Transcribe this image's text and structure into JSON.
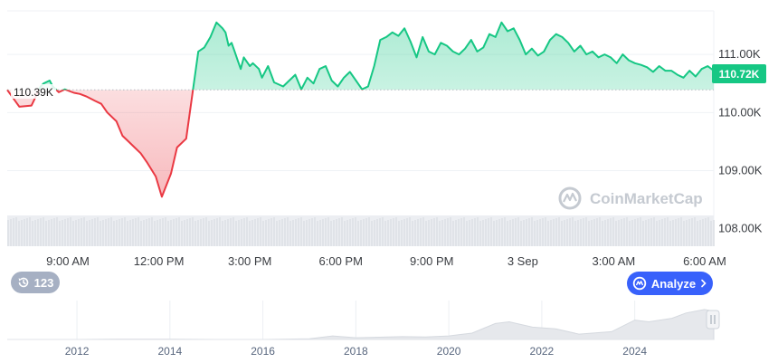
{
  "chart_data": {
    "type": "area",
    "reference_value": 110.39,
    "reference_label": "110.39K",
    "current_label": "110.72K",
    "y_unit": "K",
    "ylim": [
      107.7,
      111.75
    ],
    "y_ticks": [
      "111.00K",
      "110.00K",
      "109.00K",
      "108.00K"
    ],
    "y_tick_values": [
      111.0,
      110.0,
      109.0,
      108.0
    ],
    "x_ticks": [
      "9:00 AM",
      "12:00 PM",
      "3:00 PM",
      "6:00 PM",
      "9:00 PM",
      "3 Sep",
      "3:00 AM",
      "6:00 AM"
    ],
    "x_tick_hours": [
      9,
      12,
      15,
      18,
      21,
      24,
      27,
      30
    ],
    "xlim_hours": [
      7.0,
      30.3
    ],
    "colors": {
      "up": "#16c784",
      "down": "#ea3943",
      "volume": "#e3e6eb",
      "grid": "#eff2f5"
    },
    "series": [
      {
        "x": [
          7.0,
          7.4,
          7.8,
          8.1,
          8.2,
          8.4,
          8.5,
          8.7,
          8.9,
          9.0,
          9.2,
          9.4,
          9.6,
          9.9,
          10.1,
          10.3,
          10.6,
          10.8,
          11.0,
          11.2,
          11.4,
          11.6,
          11.9,
          12.1,
          12.4,
          12.6,
          12.9,
          13.1,
          13.3,
          13.5,
          13.7,
          13.9,
          14.1,
          14.2,
          14.3,
          14.4,
          14.5,
          14.6,
          14.7,
          14.8,
          15.0,
          15.1,
          15.3,
          15.4,
          15.6,
          15.8,
          16.1,
          16.3,
          16.5,
          16.7,
          16.9,
          17.1,
          17.3,
          17.5,
          17.7,
          17.9,
          18.1,
          18.3,
          18.5,
          18.7,
          18.9,
          19.1,
          19.3,
          19.5,
          19.7,
          19.9,
          20.1,
          20.3,
          20.5,
          20.7,
          20.9,
          21.1,
          21.3,
          21.5,
          21.7,
          21.9,
          22.1,
          22.3,
          22.5,
          22.7,
          22.9,
          23.1,
          23.3,
          23.5,
          23.7,
          23.9,
          24.1,
          24.3,
          24.5,
          24.7,
          24.9,
          25.1,
          25.3,
          25.5,
          25.7,
          25.9,
          26.1,
          26.3,
          26.5,
          26.7,
          26.9,
          27.1,
          27.3,
          27.5,
          27.7,
          27.9,
          28.1,
          28.3,
          28.5,
          28.7,
          28.9,
          29.1,
          29.3,
          29.5,
          29.7,
          29.9,
          30.1,
          30.3
        ],
        "y": [
          110.39,
          110.1,
          110.12,
          110.45,
          110.5,
          110.55,
          110.45,
          110.35,
          110.4,
          110.38,
          110.34,
          110.32,
          110.28,
          110.2,
          110.15,
          110.0,
          109.85,
          109.6,
          109.5,
          109.4,
          109.3,
          109.15,
          108.9,
          108.55,
          108.95,
          109.4,
          109.55,
          110.3,
          111.05,
          111.12,
          111.3,
          111.55,
          111.45,
          111.38,
          111.15,
          111.2,
          111.05,
          110.9,
          110.75,
          110.95,
          110.8,
          110.85,
          110.75,
          110.6,
          110.8,
          110.52,
          110.45,
          110.55,
          110.65,
          110.4,
          110.6,
          110.5,
          110.75,
          110.8,
          110.55,
          110.45,
          110.6,
          110.7,
          110.55,
          110.4,
          110.45,
          110.8,
          111.25,
          111.3,
          111.38,
          111.32,
          111.45,
          111.22,
          110.95,
          111.3,
          111.05,
          111.0,
          111.2,
          111.15,
          111.05,
          111.0,
          111.1,
          111.25,
          111.05,
          111.12,
          111.35,
          111.3,
          111.55,
          111.4,
          111.45,
          111.25,
          111.0,
          111.1,
          110.98,
          111.05,
          111.25,
          111.35,
          111.3,
          111.2,
          111.05,
          111.15,
          111.0,
          111.05,
          110.95,
          111.0,
          110.95,
          110.85,
          111.0,
          110.9,
          110.85,
          110.82,
          110.78,
          110.7,
          110.8,
          110.72,
          110.72,
          110.65,
          110.6,
          110.72,
          110.62,
          110.75,
          110.8,
          110.72
        ]
      }
    ],
    "navigator": {
      "x_ticks": [
        "2012",
        "2014",
        "2016",
        "2018",
        "2020",
        "2022",
        "2024"
      ],
      "x_tick_years": [
        2012,
        2014,
        2016,
        2018,
        2020,
        2022,
        2024
      ],
      "xlim_years": [
        2010.5,
        2025.7
      ],
      "x": [
        2010.5,
        2012,
        2013,
        2014,
        2015,
        2016,
        2017,
        2017.5,
        2018,
        2019,
        2019.5,
        2020,
        2020.5,
        2021,
        2021.3,
        2021.8,
        2022.3,
        2022.8,
        2023.5,
        2024,
        2024.3,
        2024.8,
        2025.1,
        2025.5,
        2025.7
      ],
      "y": [
        0,
        0,
        0.01,
        0.01,
        0,
        0,
        0.02,
        0.1,
        0.05,
        0.08,
        0.07,
        0.1,
        0.18,
        0.45,
        0.5,
        0.35,
        0.3,
        0.15,
        0.22,
        0.55,
        0.5,
        0.6,
        0.75,
        0.85,
        0.8
      ]
    }
  },
  "ui": {
    "watermark": "CoinMarketCap",
    "history_count": "123",
    "analyze_label": "Analyze"
  }
}
